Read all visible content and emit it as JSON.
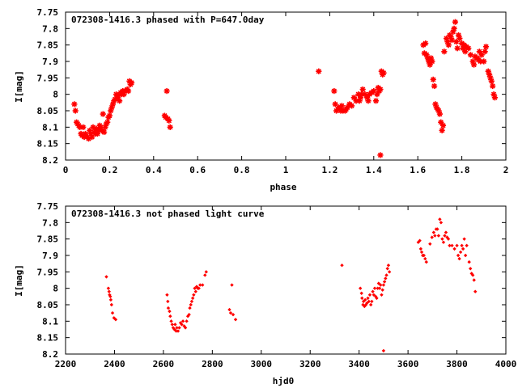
{
  "colors": {
    "points": "#ff0000",
    "axes": "#000000",
    "background": "#ffffff"
  },
  "chart_data": [
    {
      "type": "scatter",
      "title": "072308-1416.3 phased with P=647.0day",
      "xlabel": "phase",
      "ylabel": "I[mag]",
      "xlim": [
        0,
        2
      ],
      "ylim": [
        8.2,
        7.75
      ],
      "y_inverted": true,
      "grid": false,
      "marker": "asterisk",
      "x_ticks": [
        "0",
        "0.2",
        "0.4",
        "0.6",
        "0.8",
        "1",
        "1.2",
        "1.4",
        "1.6",
        "1.8",
        "2"
      ],
      "y_ticks": [
        "7.75",
        "7.8",
        "7.85",
        "7.9",
        "7.95",
        "8",
        "8.05",
        "8.1",
        "8.15",
        "8.2"
      ],
      "points": [
        [
          0.04,
          8.03
        ],
        [
          0.045,
          8.05
        ],
        [
          0.05,
          8.085
        ],
        [
          0.055,
          8.09
        ],
        [
          0.06,
          8.095
        ],
        [
          0.065,
          8.1
        ],
        [
          0.07,
          8.12
        ],
        [
          0.075,
          8.125
        ],
        [
          0.08,
          8.1
        ],
        [
          0.085,
          8.13
        ],
        [
          0.09,
          8.12
        ],
        [
          0.1,
          8.13
        ],
        [
          0.105,
          8.135
        ],
        [
          0.11,
          8.11
        ],
        [
          0.115,
          8.12
        ],
        [
          0.12,
          8.13
        ],
        [
          0.125,
          8.1
        ],
        [
          0.13,
          8.115
        ],
        [
          0.135,
          8.12
        ],
        [
          0.14,
          8.105
        ],
        [
          0.145,
          8.12
        ],
        [
          0.15,
          8.11
        ],
        [
          0.155,
          8.095
        ],
        [
          0.16,
          8.1
        ],
        [
          0.165,
          8.11
        ],
        [
          0.17,
          8.06
        ],
        [
          0.175,
          8.115
        ],
        [
          0.18,
          8.1
        ],
        [
          0.185,
          8.09
        ],
        [
          0.19,
          8.085
        ],
        [
          0.195,
          8.07
        ],
        [
          0.2,
          8.065
        ],
        [
          0.205,
          8.05
        ],
        [
          0.21,
          8.04
        ],
        [
          0.215,
          8.03
        ],
        [
          0.22,
          8.02
        ],
        [
          0.225,
          8.015
        ],
        [
          0.23,
          8.0
        ],
        [
          0.235,
          8.01
        ],
        [
          0.24,
          8.005
        ],
        [
          0.245,
          8.02
        ],
        [
          0.25,
          7.995
        ],
        [
          0.255,
          8.0
        ],
        [
          0.26,
          7.99
        ],
        [
          0.265,
          8.0
        ],
        [
          0.27,
          7.99
        ],
        [
          0.28,
          7.985
        ],
        [
          0.285,
          7.99
        ],
        [
          0.29,
          7.96
        ],
        [
          0.295,
          7.97
        ],
        [
          0.3,
          7.965
        ],
        [
          0.45,
          8.065
        ],
        [
          0.455,
          8.07
        ],
        [
          0.46,
          7.99
        ],
        [
          0.465,
          8.075
        ],
        [
          0.47,
          8.08
        ],
        [
          0.475,
          8.1
        ],
        [
          1.15,
          7.93
        ],
        [
          1.22,
          7.99
        ],
        [
          1.225,
          8.03
        ],
        [
          1.23,
          8.05
        ],
        [
          1.24,
          8.04
        ],
        [
          1.25,
          8.05
        ],
        [
          1.255,
          8.035
        ],
        [
          1.26,
          8.05
        ],
        [
          1.27,
          8.05
        ],
        [
          1.275,
          8.045
        ],
        [
          1.28,
          8.04
        ],
        [
          1.29,
          8.03
        ],
        [
          1.3,
          8.035
        ],
        [
          1.31,
          8.01
        ],
        [
          1.32,
          8.02
        ],
        [
          1.33,
          8.0
        ],
        [
          1.335,
          8.02
        ],
        [
          1.34,
          8.01
        ],
        [
          1.345,
          8.0
        ],
        [
          1.35,
          7.985
        ],
        [
          1.36,
          8.0
        ],
        [
          1.37,
          8.01
        ],
        [
          1.375,
          8.02
        ],
        [
          1.38,
          8.0
        ],
        [
          1.39,
          7.995
        ],
        [
          1.4,
          7.99
        ],
        [
          1.41,
          8.02
        ],
        [
          1.415,
          8.0
        ],
        [
          1.42,
          7.98
        ],
        [
          1.425,
          7.99
        ],
        [
          1.43,
          7.985
        ],
        [
          1.435,
          7.93
        ],
        [
          1.44,
          7.94
        ],
        [
          1.445,
          7.935
        ],
        [
          1.43,
          8.185
        ],
        [
          1.625,
          7.85
        ],
        [
          1.63,
          7.875
        ],
        [
          1.635,
          7.845
        ],
        [
          1.64,
          7.88
        ],
        [
          1.645,
          7.89
        ],
        [
          1.65,
          7.9
        ],
        [
          1.655,
          7.91
        ],
        [
          1.66,
          7.89
        ],
        [
          1.665,
          7.9
        ],
        [
          1.67,
          7.955
        ],
        [
          1.675,
          7.975
        ],
        [
          1.68,
          8.03
        ],
        [
          1.685,
          8.04
        ],
        [
          1.69,
          8.045
        ],
        [
          1.695,
          8.05
        ],
        [
          1.7,
          8.06
        ],
        [
          1.705,
          8.085
        ],
        [
          1.71,
          8.11
        ],
        [
          1.715,
          8.095
        ],
        [
          1.72,
          7.87
        ],
        [
          1.73,
          7.83
        ],
        [
          1.735,
          7.84
        ],
        [
          1.74,
          7.85
        ],
        [
          1.745,
          7.82
        ],
        [
          1.75,
          7.825
        ],
        [
          1.755,
          7.835
        ],
        [
          1.76,
          7.81
        ],
        [
          1.765,
          7.8
        ],
        [
          1.77,
          7.78
        ],
        [
          1.775,
          7.84
        ],
        [
          1.78,
          7.86
        ],
        [
          1.785,
          7.82
        ],
        [
          1.79,
          7.83
        ],
        [
          1.8,
          7.845
        ],
        [
          1.805,
          7.86
        ],
        [
          1.81,
          7.85
        ],
        [
          1.815,
          7.87
        ],
        [
          1.82,
          7.855
        ],
        [
          1.83,
          7.86
        ],
        [
          1.84,
          7.88
        ],
        [
          1.85,
          7.9
        ],
        [
          1.855,
          7.91
        ],
        [
          1.86,
          7.885
        ],
        [
          1.87,
          7.89
        ],
        [
          1.875,
          7.895
        ],
        [
          1.88,
          7.87
        ],
        [
          1.885,
          7.9
        ],
        [
          1.89,
          7.88
        ],
        [
          1.9,
          7.9
        ],
        [
          1.905,
          7.87
        ],
        [
          1.91,
          7.855
        ],
        [
          1.92,
          7.93
        ],
        [
          1.925,
          7.94
        ],
        [
          1.93,
          7.95
        ],
        [
          1.935,
          7.96
        ],
        [
          1.94,
          7.975
        ],
        [
          1.945,
          8.0
        ],
        [
          1.95,
          8.01
        ]
      ]
    },
    {
      "type": "scatter",
      "title": "072308-1416.3 not phased light curve",
      "xlabel": "hjd0",
      "ylabel": "I[mag]",
      "xlim": [
        2200,
        4000
      ],
      "ylim": [
        8.2,
        7.75
      ],
      "y_inverted": true,
      "grid": false,
      "marker": "diamond",
      "x_ticks": [
        "2200",
        "2400",
        "2600",
        "2800",
        "3000",
        "3200",
        "3400",
        "3600",
        "3800",
        "4000"
      ],
      "y_ticks": [
        "7.75",
        "7.8",
        "7.85",
        "7.9",
        "7.95",
        "8",
        "8.05",
        "8.1",
        "8.15",
        "8.2"
      ],
      "points": [
        [
          2367,
          7.965
        ],
        [
          2375,
          8.0
        ],
        [
          2378,
          8.01
        ],
        [
          2380,
          8.02
        ],
        [
          2383,
          8.025
        ],
        [
          2385,
          8.035
        ],
        [
          2388,
          8.05
        ],
        [
          2392,
          8.075
        ],
        [
          2398,
          8.09
        ],
        [
          2405,
          8.095
        ],
        [
          2615,
          8.02
        ],
        [
          2618,
          8.04
        ],
        [
          2620,
          8.06
        ],
        [
          2625,
          8.07
        ],
        [
          2628,
          8.085
        ],
        [
          2632,
          8.1
        ],
        [
          2636,
          8.11
        ],
        [
          2640,
          8.12
        ],
        [
          2645,
          8.125
        ],
        [
          2648,
          8.11
        ],
        [
          2652,
          8.13
        ],
        [
          2655,
          8.12
        ],
        [
          2660,
          8.13
        ],
        [
          2665,
          8.12
        ],
        [
          2670,
          8.105
        ],
        [
          2675,
          8.11
        ],
        [
          2680,
          8.1
        ],
        [
          2685,
          8.115
        ],
        [
          2690,
          8.12
        ],
        [
          2695,
          8.1
        ],
        [
          2700,
          8.085
        ],
        [
          2705,
          8.08
        ],
        [
          2708,
          8.06
        ],
        [
          2712,
          8.05
        ],
        [
          2716,
          8.04
        ],
        [
          2720,
          8.03
        ],
        [
          2724,
          8.02
        ],
        [
          2728,
          8.0
        ],
        [
          2732,
          8.01
        ],
        [
          2736,
          7.995
        ],
        [
          2740,
          8.0
        ],
        [
          2745,
          8.0
        ],
        [
          2750,
          7.99
        ],
        [
          2760,
          7.99
        ],
        [
          2770,
          7.96
        ],
        [
          2775,
          7.95
        ],
        [
          2870,
          8.065
        ],
        [
          2875,
          8.075
        ],
        [
          2880,
          7.99
        ],
        [
          2885,
          8.08
        ],
        [
          2895,
          8.095
        ],
        [
          3330,
          7.93
        ],
        [
          3405,
          8.0
        ],
        [
          3410,
          8.015
        ],
        [
          3412,
          8.03
        ],
        [
          3416,
          8.05
        ],
        [
          3418,
          8.04
        ],
        [
          3422,
          8.055
        ],
        [
          3425,
          8.035
        ],
        [
          3428,
          8.05
        ],
        [
          3432,
          8.045
        ],
        [
          3436,
          8.03
        ],
        [
          3440,
          8.04
        ],
        [
          3444,
          8.02
        ],
        [
          3448,
          8.05
        ],
        [
          3452,
          8.04
        ],
        [
          3456,
          8.01
        ],
        [
          3460,
          8.02
        ],
        [
          3464,
          8.0
        ],
        [
          3468,
          8.025
        ],
        [
          3472,
          8.03
        ],
        [
          3476,
          8.0
        ],
        [
          3480,
          7.985
        ],
        [
          3484,
          8.0
        ],
        [
          3488,
          7.99
        ],
        [
          3492,
          8.02
        ],
        [
          3496,
          8.005
        ],
        [
          3500,
          7.99
        ],
        [
          3504,
          7.98
        ],
        [
          3508,
          7.97
        ],
        [
          3512,
          7.96
        ],
        [
          3516,
          7.94
        ],
        [
          3520,
          7.93
        ],
        [
          3524,
          7.95
        ],
        [
          3500,
          8.19
        ],
        [
          3642,
          7.86
        ],
        [
          3648,
          7.855
        ],
        [
          3652,
          7.88
        ],
        [
          3656,
          7.89
        ],
        [
          3660,
          7.9
        ],
        [
          3665,
          7.9
        ],
        [
          3670,
          7.91
        ],
        [
          3675,
          7.92
        ],
        [
          3690,
          7.865
        ],
        [
          3698,
          7.845
        ],
        [
          3705,
          7.83
        ],
        [
          3710,
          7.84
        ],
        [
          3715,
          7.82
        ],
        [
          3720,
          7.82
        ],
        [
          3725,
          7.84
        ],
        [
          3730,
          7.79
        ],
        [
          3735,
          7.8
        ],
        [
          3740,
          7.85
        ],
        [
          3745,
          7.86
        ],
        [
          3750,
          7.84
        ],
        [
          3755,
          7.83
        ],
        [
          3760,
          7.845
        ],
        [
          3765,
          7.85
        ],
        [
          3770,
          7.87
        ],
        [
          3780,
          7.87
        ],
        [
          3790,
          7.88
        ],
        [
          3800,
          7.87
        ],
        [
          3805,
          7.9
        ],
        [
          3810,
          7.91
        ],
        [
          3815,
          7.89
        ],
        [
          3820,
          7.87
        ],
        [
          3825,
          7.88
        ],
        [
          3830,
          7.85
        ],
        [
          3835,
          7.9
        ],
        [
          3840,
          7.87
        ],
        [
          3850,
          7.92
        ],
        [
          3855,
          7.94
        ],
        [
          3860,
          7.955
        ],
        [
          3865,
          7.96
        ],
        [
          3870,
          7.975
        ],
        [
          3875,
          8.01
        ]
      ]
    }
  ]
}
